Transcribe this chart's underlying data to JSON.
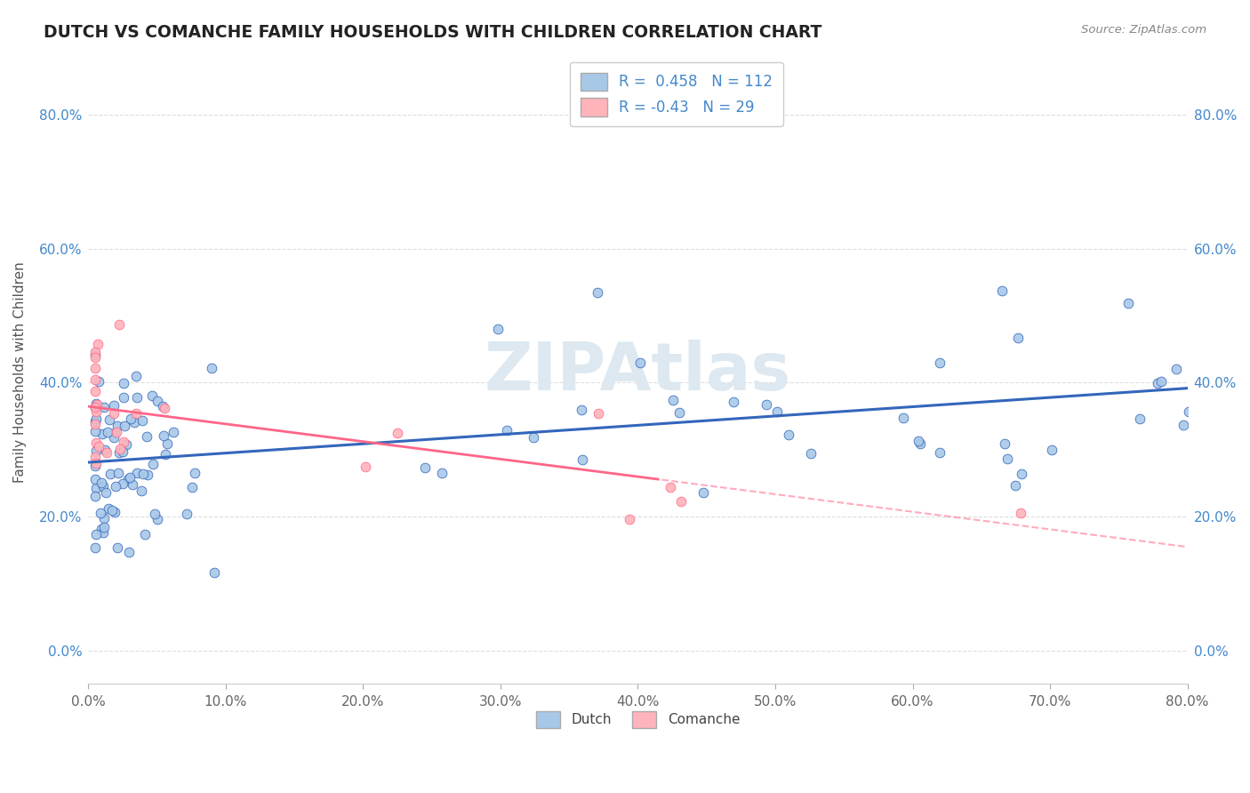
{
  "title": "DUTCH VS COMANCHE FAMILY HOUSEHOLDS WITH CHILDREN CORRELATION CHART",
  "source": "Source: ZipAtlas.com",
  "ylabel": "Family Households with Children",
  "xlim": [
    0.0,
    0.8
  ],
  "ylim": [
    -0.05,
    0.88
  ],
  "yticks": [
    0.0,
    0.2,
    0.4,
    0.6,
    0.8
  ],
  "xticks": [
    0.0,
    0.1,
    0.2,
    0.3,
    0.4,
    0.5,
    0.6,
    0.7,
    0.8
  ],
  "dutch_R": 0.458,
  "dutch_N": 112,
  "comanche_R": -0.43,
  "comanche_N": 29,
  "dutch_color": "#A8C8E8",
  "comanche_color": "#FFB3BA",
  "dutch_line_color": "#3366BB",
  "comanche_line_color": "#FF6688",
  "background_color": "#FFFFFF",
  "title_color": "#222222",
  "source_color": "#888888",
  "axis_label_color": "#555555",
  "tick_color_y": "#4488CC",
  "tick_color_x": "#666666",
  "grid_color": "#DDDDDD",
  "watermark_color": "#DDE8F0",
  "dutch_intercept": 0.285,
  "dutch_slope": 0.155,
  "dutch_noise": 0.072,
  "comanche_intercept": 0.365,
  "comanche_slope": -0.28,
  "comanche_noise": 0.055
}
